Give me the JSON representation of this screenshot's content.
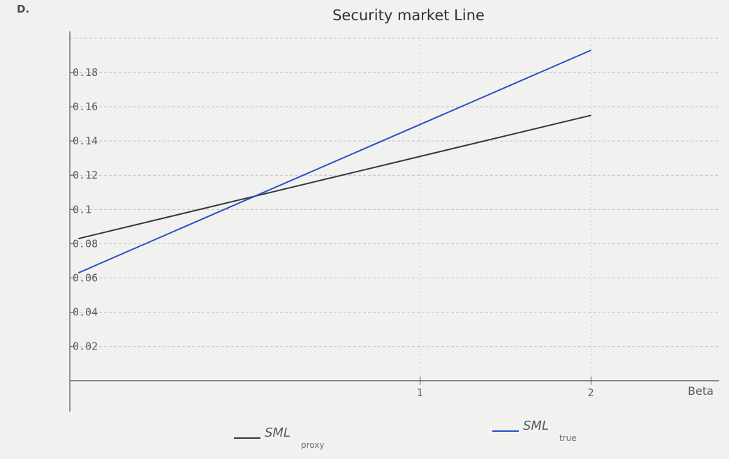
{
  "panel_label": "D.",
  "chart_data": {
    "type": "line",
    "title": "Security market Line",
    "xlabel": "Beta",
    "ylabel": "",
    "xlim": [
      -1.05,
      2.75
    ],
    "ylim": [
      -0.018,
      0.204
    ],
    "x_ticks": [
      {
        "value": 1,
        "label": "1"
      },
      {
        "value": 2,
        "label": "2"
      }
    ],
    "y_ticks": [
      {
        "value": 0.02,
        "label": "0.02"
      },
      {
        "value": 0.04,
        "label": "0.04"
      },
      {
        "value": 0.06,
        "label": "0.06"
      },
      {
        "value": 0.08,
        "label": "0.08"
      },
      {
        "value": 0.1,
        "label": "0.1"
      },
      {
        "value": 0.12,
        "label": "0.12"
      },
      {
        "value": 0.14,
        "label": "0.14"
      },
      {
        "value": 0.16,
        "label": "0.16"
      },
      {
        "value": 0.18,
        "label": "0.18"
      }
    ],
    "grid": true,
    "legend_position": "bottom",
    "series": [
      {
        "name": "SML",
        "subscript": "proxy",
        "color": "#2f3a33",
        "x": [
          -1,
          2
        ],
        "y": [
          0.083,
          0.155
        ]
      },
      {
        "name": "SML",
        "subscript": "true",
        "color": "#2a4fc8",
        "x": [
          -1,
          2
        ],
        "y": [
          0.063,
          0.193
        ]
      }
    ]
  }
}
